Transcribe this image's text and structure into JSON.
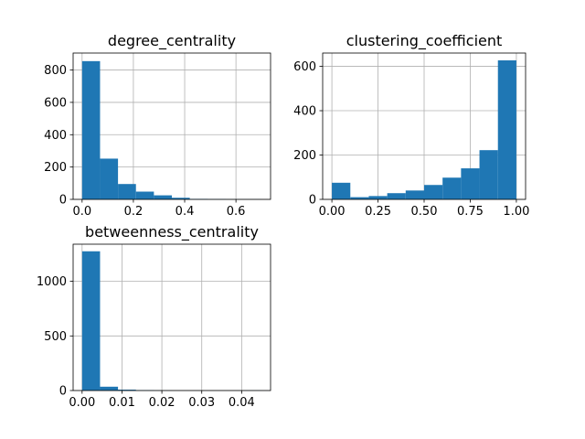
{
  "chart_data": [
    {
      "type": "bar",
      "title": "degree_centrality",
      "xlabel": "",
      "ylabel": "",
      "bin_edges": [
        0.0,
        0.07,
        0.14,
        0.21,
        0.28,
        0.35,
        0.42,
        0.49,
        0.56,
        0.63,
        0.7
      ],
      "values": [
        855,
        252,
        95,
        48,
        25,
        10,
        3,
        2,
        1,
        1
      ],
      "xlim": [
        -0.035,
        0.735
      ],
      "ylim": [
        0,
        905
      ],
      "xticks": [
        0.0,
        0.2,
        0.4,
        0.6
      ],
      "xtick_labels": [
        "0.0",
        "0.2",
        "0.4",
        "0.6"
      ],
      "yticks": [
        0,
        200,
        400,
        600,
        800
      ],
      "ytick_labels": [
        "0",
        "200",
        "400",
        "600",
        "800"
      ],
      "grid": true,
      "color": "#1f77b4"
    },
    {
      "type": "bar",
      "title": "clustering_coefficient",
      "xlabel": "",
      "ylabel": "",
      "bin_edges": [
        0.0,
        0.1,
        0.2,
        0.3,
        0.4,
        0.5,
        0.6,
        0.7,
        0.8,
        0.9,
        1.0
      ],
      "values": [
        75,
        10,
        15,
        28,
        40,
        65,
        98,
        140,
        222,
        627
      ],
      "xlim": [
        -0.05,
        1.05
      ],
      "ylim": [
        0,
        660
      ],
      "xticks": [
        0.0,
        0.25,
        0.5,
        0.75,
        1.0
      ],
      "xtick_labels": [
        "0.00",
        "0.25",
        "0.50",
        "0.75",
        "1.00"
      ],
      "yticks": [
        0,
        200,
        400,
        600
      ],
      "ytick_labels": [
        "0",
        "200",
        "400",
        "600"
      ],
      "grid": true,
      "color": "#1f77b4"
    },
    {
      "type": "bar",
      "title": "betweenness_centrality",
      "xlabel": "",
      "ylabel": "",
      "bin_edges": [
        0.0,
        0.0045,
        0.009,
        0.0135,
        0.018,
        0.0225,
        0.027,
        0.0315,
        0.036,
        0.0405,
        0.045
      ],
      "values": [
        1275,
        35,
        8,
        3,
        1,
        0,
        0,
        0,
        0,
        1
      ],
      "xlim": [
        -0.00225,
        0.04725
      ],
      "ylim": [
        0,
        1340
      ],
      "xticks": [
        0.0,
        0.01,
        0.02,
        0.03,
        0.04
      ],
      "xtick_labels": [
        "0.00",
        "0.01",
        "0.02",
        "0.03",
        "0.04"
      ],
      "yticks": [
        0,
        500,
        1000
      ],
      "ytick_labels": [
        "0",
        "500",
        "1000"
      ],
      "grid": true,
      "color": "#1f77b4"
    }
  ]
}
